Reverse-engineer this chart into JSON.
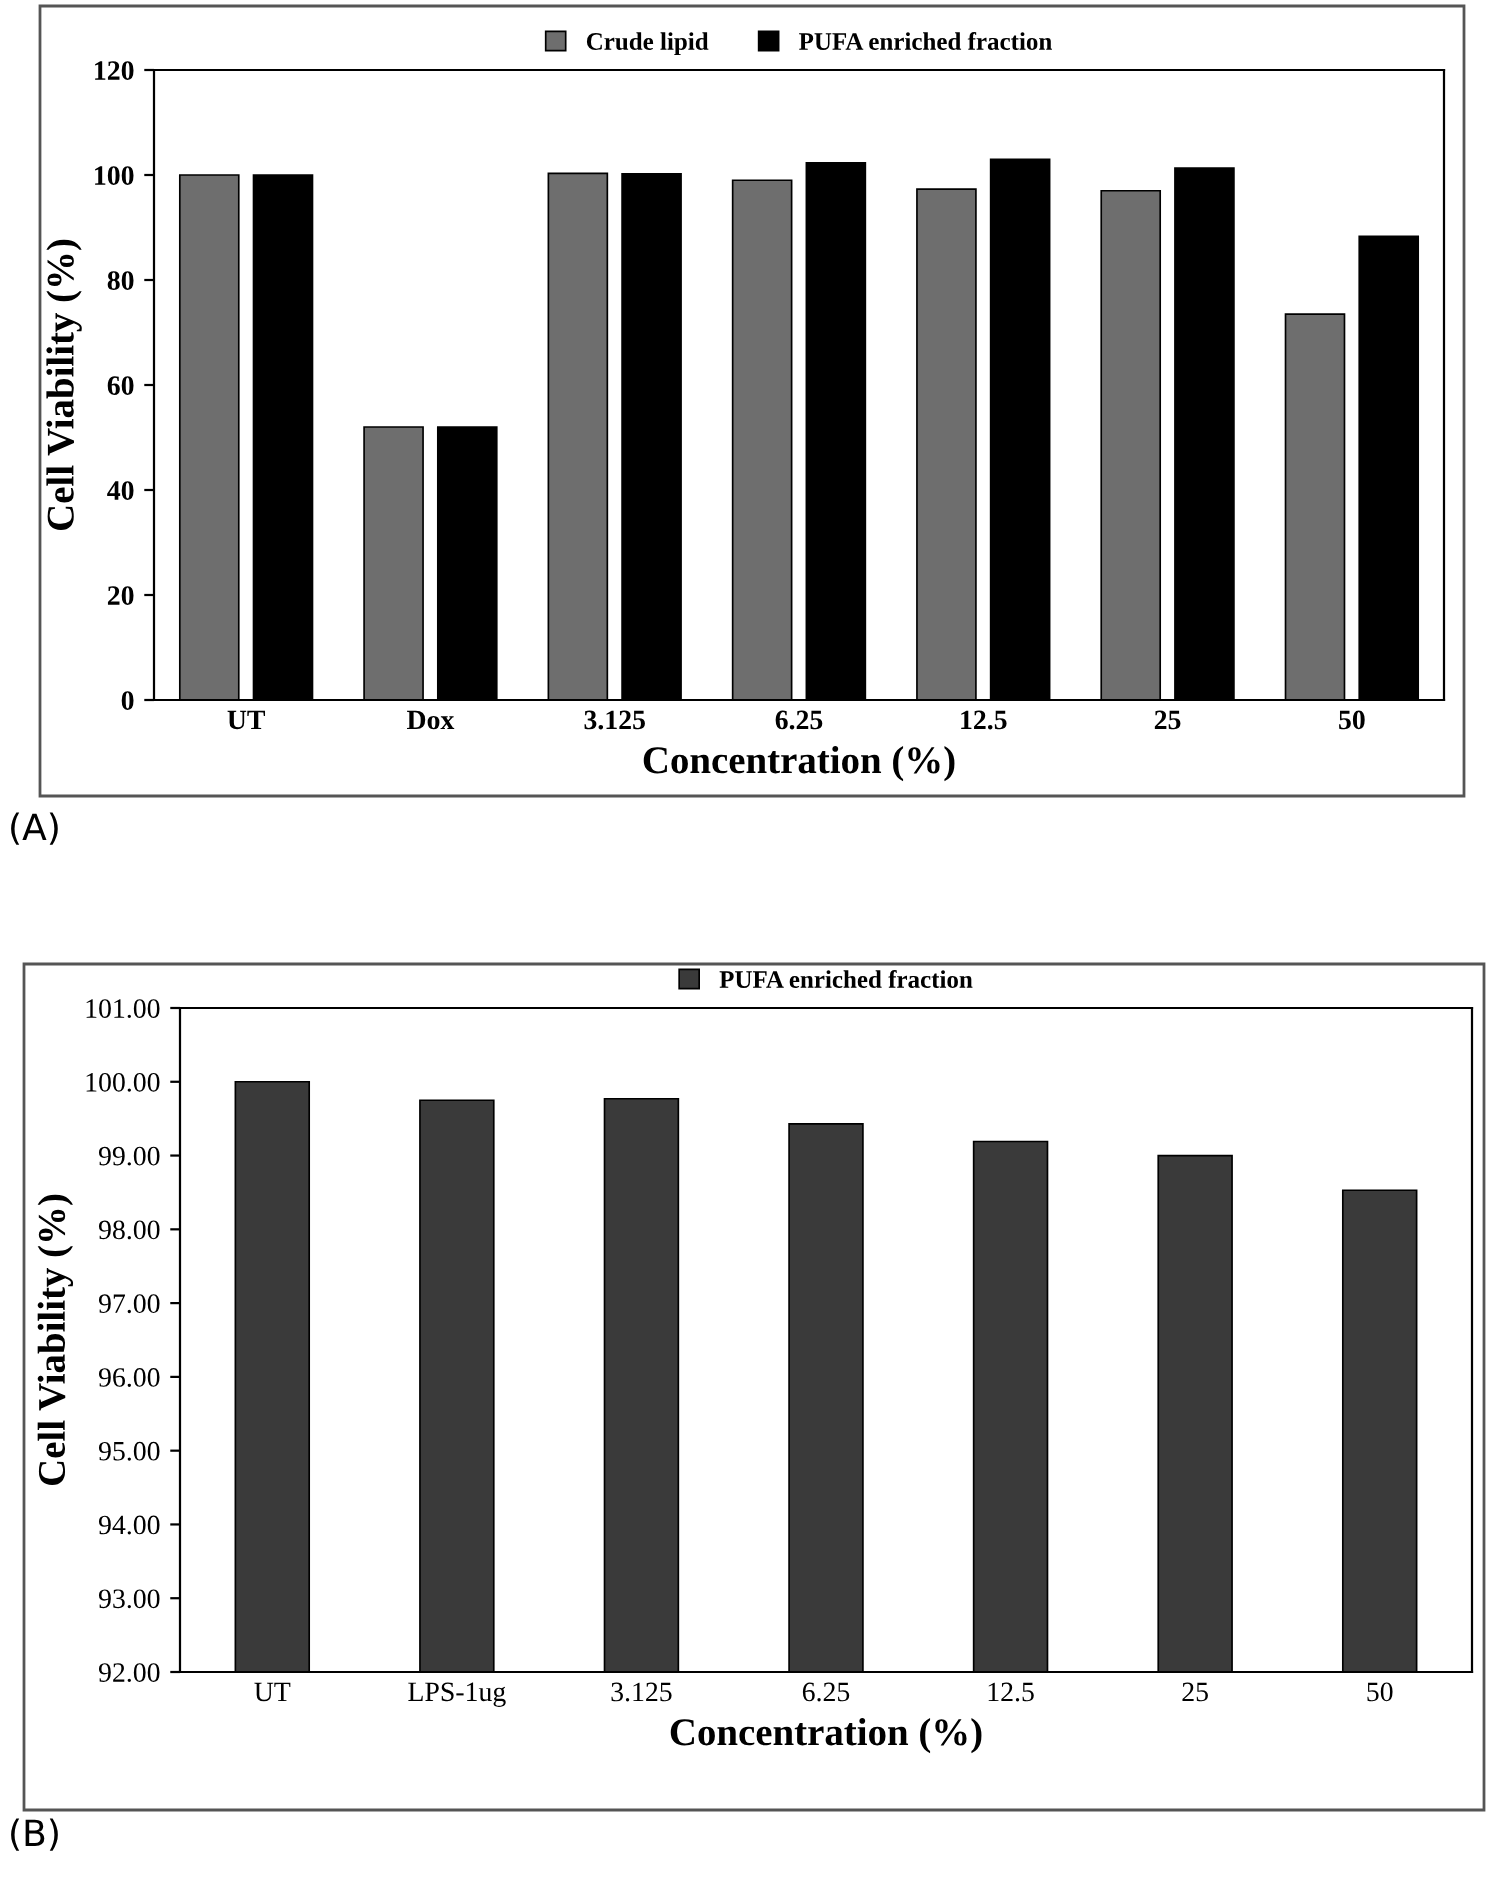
{
  "chart_data": [
    {
      "type": "bar",
      "categories": [
        "UT",
        "Dox",
        "3.125",
        "6.25",
        "12.5",
        "25",
        "50"
      ],
      "xlabel": "Concentration (%)",
      "ylabel": "Cell Viability (%)",
      "series": [
        {
          "name": "Crude lipid",
          "color": "#6e6e6e",
          "values": [
            100,
            52,
            100.3,
            99,
            97.3,
            97,
            73.5
          ]
        },
        {
          "name": "PUFA enriched fraction",
          "color": "#000000",
          "values": [
            100,
            52,
            100.2,
            102.3,
            103,
            101.3,
            88.3
          ]
        }
      ],
      "ylim": [
        0,
        120
      ],
      "yticks": [
        0,
        20,
        40,
        60,
        80,
        100,
        120
      ],
      "grid": false,
      "legend": "top",
      "annotations": [
        "(A)"
      ]
    },
    {
      "type": "bar",
      "categories": [
        "UT",
        "LPS-1ug",
        "3.125",
        "6.25",
        "12.5",
        "25",
        "50"
      ],
      "xlabel": "Concentration (%)",
      "ylabel": "Cell Viability (%)",
      "series": [
        {
          "name": "PUFA enriched fraction",
          "color": "#3a3a3a",
          "values": [
            100.0,
            99.75,
            99.77,
            99.43,
            99.19,
            99.0,
            98.53
          ]
        }
      ],
      "ylim": [
        92,
        101
      ],
      "yticks": [
        {
          "value": 92,
          "label": "92.00"
        },
        {
          "value": 93,
          "label": "93.00"
        },
        {
          "value": 94,
          "label": "94.00"
        },
        {
          "value": 95,
          "label": "95.00"
        },
        {
          "value": 96,
          "label": "96.00"
        },
        {
          "value": 97,
          "label": "97.00"
        },
        {
          "value": 98,
          "label": "98.00"
        },
        {
          "value": 99,
          "label": "99.00"
        },
        {
          "value": 100,
          "label": "100.00"
        },
        {
          "value": 101,
          "label": "101.00"
        }
      ],
      "grid": false,
      "legend": "top",
      "annotations": [
        "(B)"
      ]
    }
  ]
}
